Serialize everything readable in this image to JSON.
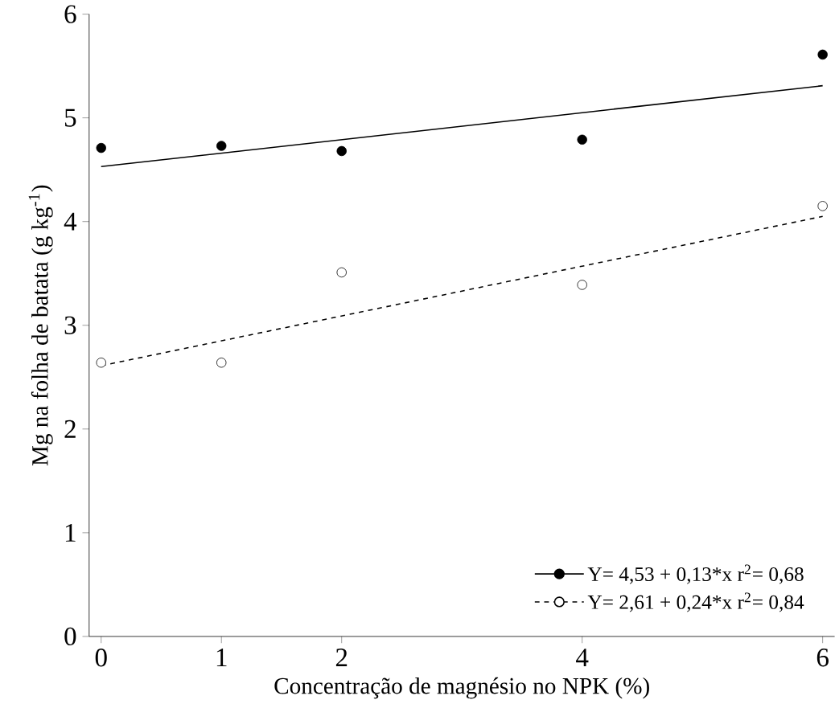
{
  "chart_data": {
    "type": "scatter",
    "xlabel": "Concentração de magnésio no NPK (%)",
    "ylabel": "Mg na folha de batata (g kg$^{-1}$)",
    "xlim": [
      -0.1,
      6.1
    ],
    "ylim": [
      0,
      6
    ],
    "xticks": [
      0,
      1,
      2,
      4,
      6
    ],
    "yticks": [
      0,
      1,
      2,
      3,
      4,
      5,
      6
    ],
    "grid": false,
    "legend": "bottom right",
    "series": [
      {
        "color": "#000000",
        "marker": "circle",
        "x": [
          0,
          1,
          2,
          4,
          6
        ],
        "values": [
          4.71,
          4.73,
          4.68,
          4.79,
          5.61
        ]
      },
      {
        "color": "#ffffff",
        "marker": "circle",
        "x": [
          0,
          1,
          2,
          4,
          6
        ],
        "values": [
          2.64,
          2.64,
          3.51,
          3.39,
          4.15
        ]
      },
      {
        "type": "line",
        "name": "Y= 4,53 + 0,13*x   r$^{2}$= 0,68",
        "color": "#000000",
        "line_style": "solid",
        "x": [
          0,
          6
        ],
        "values": [
          4.53,
          5.31
        ]
      },
      {
        "type": "line",
        "name": "Y= 2,61 + 0,24*x     r$^{2}$= 0,84",
        "color": "#000000",
        "line_style": "dashed",
        "x": [
          0,
          6
        ],
        "values": [
          2.61,
          4.05
        ]
      }
    ]
  }
}
